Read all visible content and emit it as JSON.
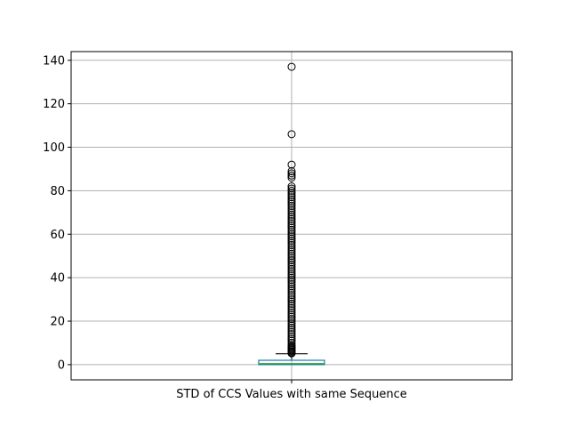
{
  "chart_data": {
    "type": "box",
    "title": "",
    "xlabel": "",
    "ylabel": "",
    "categories": [
      "STD of CCS Values with same Sequence"
    ],
    "ylim": [
      -7,
      144
    ],
    "yticks": [
      0,
      20,
      40,
      60,
      80,
      100,
      120,
      140
    ],
    "grid": true,
    "box": {
      "q1": 0,
      "median": 0.4,
      "q3": 2,
      "whisker_low": 0,
      "whisker_high": 5,
      "outliers": [
        5.2,
        5.5,
        6,
        6.5,
        7,
        7.5,
        8,
        8.5,
        9,
        10,
        11,
        12,
        13,
        14,
        15,
        16,
        17,
        18,
        19,
        20,
        21,
        22,
        23,
        24,
        25,
        26,
        27,
        28,
        29,
        30,
        31,
        32,
        33,
        34,
        35,
        36,
        37,
        38,
        39,
        40,
        41,
        42,
        43,
        44,
        45,
        46,
        47,
        48,
        49,
        50,
        51,
        52,
        53,
        54,
        55,
        56,
        57,
        58,
        59,
        60,
        61,
        62,
        63,
        64,
        65,
        66,
        67,
        68,
        69,
        70,
        71,
        72,
        73,
        74,
        75,
        76,
        77,
        78,
        79,
        80,
        81,
        82,
        86,
        87,
        88,
        89,
        92,
        106,
        137
      ]
    },
    "colors": {
      "box": "#1f77b4",
      "median": "#2ca02c",
      "whisker": "#000000",
      "grid": "#b0b0b0"
    }
  }
}
